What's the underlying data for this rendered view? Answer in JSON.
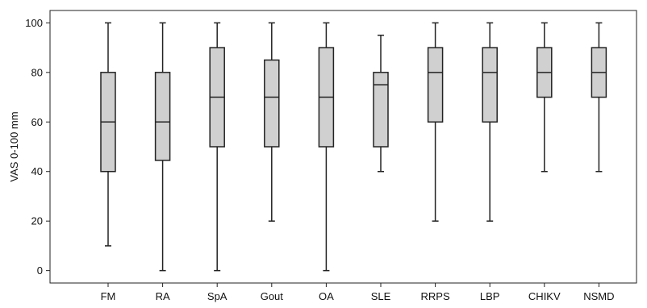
{
  "chart_data": {
    "type": "boxplot",
    "xlabel": "",
    "ylabel": "VAS 0-100 mm",
    "ylim": [
      -5,
      105
    ],
    "yticks": [
      0,
      20,
      40,
      60,
      80,
      100
    ],
    "grid": false,
    "legend": "none",
    "colors": {
      "box_fill": "#d0d0d0",
      "line": "#222222"
    },
    "categories": [
      "FM",
      "RA",
      "SpA",
      "Gout",
      "OA",
      "SLE",
      "RRPS",
      "LBP",
      "CHIKV",
      "NSMD"
    ],
    "boxes": [
      {
        "category": "FM",
        "min": 10,
        "q1": 40,
        "median": 60,
        "q3": 80,
        "max": 100
      },
      {
        "category": "RA",
        "min": 0,
        "q1": 44.5,
        "median": 60,
        "q3": 80,
        "max": 100
      },
      {
        "category": "SpA",
        "min": 0,
        "q1": 50,
        "median": 70,
        "q3": 90,
        "max": 100
      },
      {
        "category": "Gout",
        "min": 20,
        "q1": 50,
        "median": 70,
        "q3": 85,
        "max": 100
      },
      {
        "category": "OA",
        "min": 0,
        "q1": 50,
        "median": 70,
        "q3": 90,
        "max": 100
      },
      {
        "category": "SLE",
        "min": 40,
        "q1": 50,
        "median": 75,
        "q3": 80,
        "max": 95
      },
      {
        "category": "RRPS",
        "min": 20,
        "q1": 60,
        "median": 80,
        "q3": 90,
        "max": 100
      },
      {
        "category": "LBP",
        "min": 20,
        "q1": 60,
        "median": 80,
        "q3": 90,
        "max": 100
      },
      {
        "category": "CHIKV",
        "min": 40,
        "q1": 70,
        "median": 80,
        "q3": 90,
        "max": 100
      },
      {
        "category": "NSMD",
        "min": 40,
        "q1": 70,
        "median": 80,
        "q3": 90,
        "max": 100
      }
    ]
  }
}
